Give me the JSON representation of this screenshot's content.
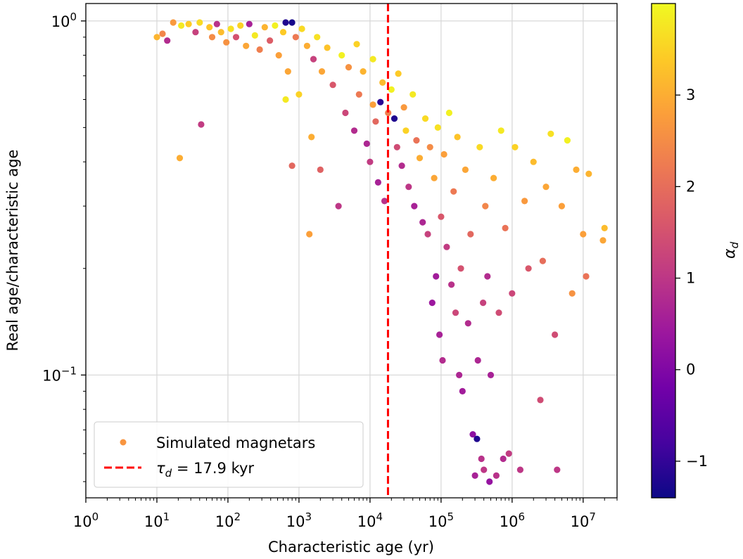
{
  "chart_data": {
    "type": "scatter",
    "title": "",
    "xlabel": "Characteristic age (yr)",
    "ylabel": "Real age/characteristic age",
    "xscale": "log",
    "yscale": "log",
    "xlim": [
      1,
      30000000
    ],
    "ylim": [
      0.045,
      1.12
    ],
    "x_ticks": [
      {
        "value": 1,
        "base": "10",
        "exp": "0"
      },
      {
        "value": 10,
        "base": "10",
        "exp": "1"
      },
      {
        "value": 100,
        "base": "10",
        "exp": "2"
      },
      {
        "value": 1000,
        "base": "10",
        "exp": "3"
      },
      {
        "value": 10000,
        "base": "10",
        "exp": "4"
      },
      {
        "value": 100000,
        "base": "10",
        "exp": "5"
      },
      {
        "value": 1000000,
        "base": "10",
        "exp": "6"
      },
      {
        "value": 10000000,
        "base": "10",
        "exp": "7"
      }
    ],
    "y_ticks": [
      {
        "value": 0.1,
        "base": "10",
        "exp": "−1"
      },
      {
        "value": 1,
        "base": "10",
        "exp": "0"
      }
    ],
    "grid": true,
    "colorbar": {
      "label": "α",
      "label_sub": "d",
      "range": [
        -1.4,
        4.0
      ],
      "ticks": [
        {
          "value": -1,
          "label": "−1"
        },
        {
          "value": 0,
          "label": "0"
        },
        {
          "value": 1,
          "label": "1"
        },
        {
          "value": 2,
          "label": "2"
        },
        {
          "value": 3,
          "label": "3"
        }
      ],
      "colormap": [
        "#0d0887",
        "#46039f",
        "#7201a8",
        "#9c179e",
        "#bd3786",
        "#d8576b",
        "#ed7953",
        "#fb9f3a",
        "#fdca26",
        "#f0f921"
      ]
    },
    "reference_line": {
      "x": 17900,
      "color": "#ff0000",
      "style": "dashed",
      "label_sym": "τ",
      "label_sub": "d",
      "label_rest": " = 17.9 kyr"
    },
    "legend": {
      "position": "lower-left",
      "marker_color": "#f89540",
      "scatter_label": "Simulated magnetars"
    },
    "series": [
      {
        "name": "Simulated magnetars",
        "points": [
          {
            "x": 10,
            "y": 0.9,
            "c": 3.1
          },
          {
            "x": 12,
            "y": 0.92,
            "c": 2.4
          },
          {
            "x": 14,
            "y": 0.88,
            "c": 0.8
          },
          {
            "x": 17,
            "y": 0.99,
            "c": 2.7
          },
          {
            "x": 21,
            "y": 0.41,
            "c": 3.0
          },
          {
            "x": 22,
            "y": 0.97,
            "c": 3.8
          },
          {
            "x": 28,
            "y": 0.98,
            "c": 3.4
          },
          {
            "x": 35,
            "y": 0.93,
            "c": 1.2
          },
          {
            "x": 40,
            "y": 0.99,
            "c": 3.6
          },
          {
            "x": 42,
            "y": 0.51,
            "c": 1.1
          },
          {
            "x": 55,
            "y": 0.96,
            "c": 3.3
          },
          {
            "x": 60,
            "y": 0.9,
            "c": 2.5
          },
          {
            "x": 70,
            "y": 0.98,
            "c": 0.9
          },
          {
            "x": 80,
            "y": 0.93,
            "c": 3.2
          },
          {
            "x": 95,
            "y": 0.87,
            "c": 2.6
          },
          {
            "x": 110,
            "y": 0.95,
            "c": 3.7
          },
          {
            "x": 130,
            "y": 0.9,
            "c": 1.5
          },
          {
            "x": 150,
            "y": 0.97,
            "c": 3.5
          },
          {
            "x": 180,
            "y": 0.85,
            "c": 2.9
          },
          {
            "x": 200,
            "y": 0.98,
            "c": 0.6
          },
          {
            "x": 240,
            "y": 0.91,
            "c": 3.8
          },
          {
            "x": 280,
            "y": 0.83,
            "c": 2.3
          },
          {
            "x": 330,
            "y": 0.96,
            "c": 3.1
          },
          {
            "x": 390,
            "y": 0.88,
            "c": 1.7
          },
          {
            "x": 460,
            "y": 0.97,
            "c": 3.9
          },
          {
            "x": 520,
            "y": 0.8,
            "c": 2.8
          },
          {
            "x": 600,
            "y": 0.93,
            "c": 3.4
          },
          {
            "x": 650,
            "y": 0.99,
            "c": -1.2
          },
          {
            "x": 650,
            "y": 0.6,
            "c": 3.8
          },
          {
            "x": 700,
            "y": 0.72,
            "c": 2.9
          },
          {
            "x": 800,
            "y": 0.99,
            "c": -1.3
          },
          {
            "x": 800,
            "y": 0.39,
            "c": 1.9
          },
          {
            "x": 900,
            "y": 0.9,
            "c": 2.2
          },
          {
            "x": 1000,
            "y": 0.62,
            "c": 3.5
          },
          {
            "x": 1100,
            "y": 0.95,
            "c": 3.6
          },
          {
            "x": 1300,
            "y": 0.85,
            "c": 3.0
          },
          {
            "x": 1400,
            "y": 0.25,
            "c": 2.8
          },
          {
            "x": 1500,
            "y": 0.47,
            "c": 3.0
          },
          {
            "x": 1600,
            "y": 0.78,
            "c": 1.2
          },
          {
            "x": 1800,
            "y": 0.9,
            "c": 3.7
          },
          {
            "x": 2000,
            "y": 0.38,
            "c": 1.8
          },
          {
            "x": 2100,
            "y": 0.72,
            "c": 2.9
          },
          {
            "x": 2500,
            "y": 0.84,
            "c": 3.3
          },
          {
            "x": 3000,
            "y": 0.66,
            "c": 1.6
          },
          {
            "x": 3600,
            "y": 0.3,
            "c": 1.0
          },
          {
            "x": 4000,
            "y": 0.8,
            "c": 3.9
          },
          {
            "x": 4500,
            "y": 0.55,
            "c": 1.3
          },
          {
            "x": 5000,
            "y": 0.74,
            "c": 2.6
          },
          {
            "x": 6000,
            "y": 0.49,
            "c": 0.8
          },
          {
            "x": 6500,
            "y": 0.86,
            "c": 3.5
          },
          {
            "x": 7000,
            "y": 0.62,
            "c": 2.2
          },
          {
            "x": 8000,
            "y": 0.72,
            "c": 3.1
          },
          {
            "x": 9000,
            "y": 0.45,
            "c": 0.7
          },
          {
            "x": 10000,
            "y": 0.4,
            "c": 1.1
          },
          {
            "x": 11000,
            "y": 0.58,
            "c": 2.8
          },
          {
            "x": 11000,
            "y": 0.78,
            "c": 3.8
          },
          {
            "x": 12000,
            "y": 0.52,
            "c": 1.9
          },
          {
            "x": 13000,
            "y": 0.35,
            "c": 0.6
          },
          {
            "x": 14000,
            "y": 0.59,
            "c": -1.1
          },
          {
            "x": 15000,
            "y": 0.67,
            "c": 3.2
          },
          {
            "x": 16000,
            "y": 0.31,
            "c": 0.9
          },
          {
            "x": 18000,
            "y": 0.55,
            "c": 2.3
          },
          {
            "x": 20000,
            "y": 0.64,
            "c": 3.9
          },
          {
            "x": 22000,
            "y": 0.53,
            "c": -1.2
          },
          {
            "x": 24000,
            "y": 0.44,
            "c": 1.4
          },
          {
            "x": 25000,
            "y": 0.71,
            "c": 3.4
          },
          {
            "x": 28000,
            "y": 0.39,
            "c": 0.8
          },
          {
            "x": 30000,
            "y": 0.57,
            "c": 2.7
          },
          {
            "x": 32000,
            "y": 0.49,
            "c": 3.5
          },
          {
            "x": 35000,
            "y": 0.34,
            "c": 1.0
          },
          {
            "x": 40000,
            "y": 0.62,
            "c": 3.8
          },
          {
            "x": 42000,
            "y": 0.3,
            "c": 0.6
          },
          {
            "x": 45000,
            "y": 0.46,
            "c": 2.1
          },
          {
            "x": 50000,
            "y": 0.41,
            "c": 3.0
          },
          {
            "x": 55000,
            "y": 0.27,
            "c": 0.7
          },
          {
            "x": 60000,
            "y": 0.53,
            "c": 3.6
          },
          {
            "x": 65000,
            "y": 0.25,
            "c": 1.2
          },
          {
            "x": 70000,
            "y": 0.44,
            "c": 2.5
          },
          {
            "x": 75000,
            "y": 0.16,
            "c": 0.4
          },
          {
            "x": 80000,
            "y": 0.36,
            "c": 2.9
          },
          {
            "x": 85000,
            "y": 0.19,
            "c": 0.5
          },
          {
            "x": 90000,
            "y": 0.5,
            "c": 3.7
          },
          {
            "x": 95000,
            "y": 0.13,
            "c": 0.6
          },
          {
            "x": 100000,
            "y": 0.28,
            "c": 1.6
          },
          {
            "x": 105000,
            "y": 0.11,
            "c": 0.8
          },
          {
            "x": 110000,
            "y": 0.42,
            "c": 2.8
          },
          {
            "x": 120000,
            "y": 0.23,
            "c": 1.1
          },
          {
            "x": 130000,
            "y": 0.55,
            "c": 3.9
          },
          {
            "x": 140000,
            "y": 0.18,
            "c": 0.9
          },
          {
            "x": 150000,
            "y": 0.33,
            "c": 2.2
          },
          {
            "x": 160000,
            "y": 0.15,
            "c": 1.3
          },
          {
            "x": 170000,
            "y": 0.47,
            "c": 3.3
          },
          {
            "x": 180000,
            "y": 0.1,
            "c": 0.7
          },
          {
            "x": 190000,
            "y": 0.2,
            "c": 1.5
          },
          {
            "x": 200000,
            "y": 0.09,
            "c": 0.5
          },
          {
            "x": 220000,
            "y": 0.38,
            "c": 2.9
          },
          {
            "x": 240000,
            "y": 0.14,
            "c": 0.8
          },
          {
            "x": 260000,
            "y": 0.25,
            "c": 1.9
          },
          {
            "x": 280000,
            "y": 0.068,
            "c": 0.2
          },
          {
            "x": 300000,
            "y": 0.052,
            "c": 0.6
          },
          {
            "x": 320000,
            "y": 0.066,
            "c": -1.2
          },
          {
            "x": 330000,
            "y": 0.11,
            "c": 0.7
          },
          {
            "x": 350000,
            "y": 0.44,
            "c": 3.6
          },
          {
            "x": 370000,
            "y": 0.058,
            "c": 0.9
          },
          {
            "x": 390000,
            "y": 0.16,
            "c": 1.2
          },
          {
            "x": 400000,
            "y": 0.054,
            "c": 1.0
          },
          {
            "x": 420000,
            "y": 0.3,
            "c": 2.4
          },
          {
            "x": 450000,
            "y": 0.19,
            "c": 0.8
          },
          {
            "x": 480000,
            "y": 0.05,
            "c": 0.3
          },
          {
            "x": 500000,
            "y": 0.1,
            "c": 0.6
          },
          {
            "x": 550000,
            "y": 0.36,
            "c": 3.0
          },
          {
            "x": 600000,
            "y": 0.052,
            "c": 0.9
          },
          {
            "x": 650000,
            "y": 0.15,
            "c": 1.4
          },
          {
            "x": 700000,
            "y": 0.49,
            "c": 3.8
          },
          {
            "x": 750000,
            "y": 0.058,
            "c": 0.8
          },
          {
            "x": 800000,
            "y": 0.26,
            "c": 2.1
          },
          {
            "x": 900000,
            "y": 0.06,
            "c": 1.1
          },
          {
            "x": 1000000,
            "y": 0.17,
            "c": 1.3
          },
          {
            "x": 1100000,
            "y": 0.44,
            "c": 3.5
          },
          {
            "x": 1300000,
            "y": 0.054,
            "c": 1.0
          },
          {
            "x": 1500000,
            "y": 0.31,
            "c": 2.7
          },
          {
            "x": 1700000,
            "y": 0.2,
            "c": 1.6
          },
          {
            "x": 2000000,
            "y": 0.4,
            "c": 3.2
          },
          {
            "x": 2500000,
            "y": 0.085,
            "c": 1.4
          },
          {
            "x": 2700000,
            "y": 0.21,
            "c": 2.0
          },
          {
            "x": 3000000,
            "y": 0.34,
            "c": 2.9
          },
          {
            "x": 3500000,
            "y": 0.48,
            "c": 3.7
          },
          {
            "x": 4000000,
            "y": 0.13,
            "c": 1.4
          },
          {
            "x": 4300000,
            "y": 0.054,
            "c": 1.0
          },
          {
            "x": 5000000,
            "y": 0.3,
            "c": 2.8
          },
          {
            "x": 6000000,
            "y": 0.46,
            "c": 3.9
          },
          {
            "x": 7000000,
            "y": 0.17,
            "c": 2.6
          },
          {
            "x": 8000000,
            "y": 0.38,
            "c": 3.0
          },
          {
            "x": 10000000,
            "y": 0.25,
            "c": 2.8
          },
          {
            "x": 11000000,
            "y": 0.19,
            "c": 2.1
          },
          {
            "x": 12000000,
            "y": 0.37,
            "c": 3.1
          },
          {
            "x": 19000000,
            "y": 0.24,
            "c": 2.9
          },
          {
            "x": 20000000,
            "y": 0.26,
            "c": 3.2
          }
        ]
      }
    ]
  }
}
